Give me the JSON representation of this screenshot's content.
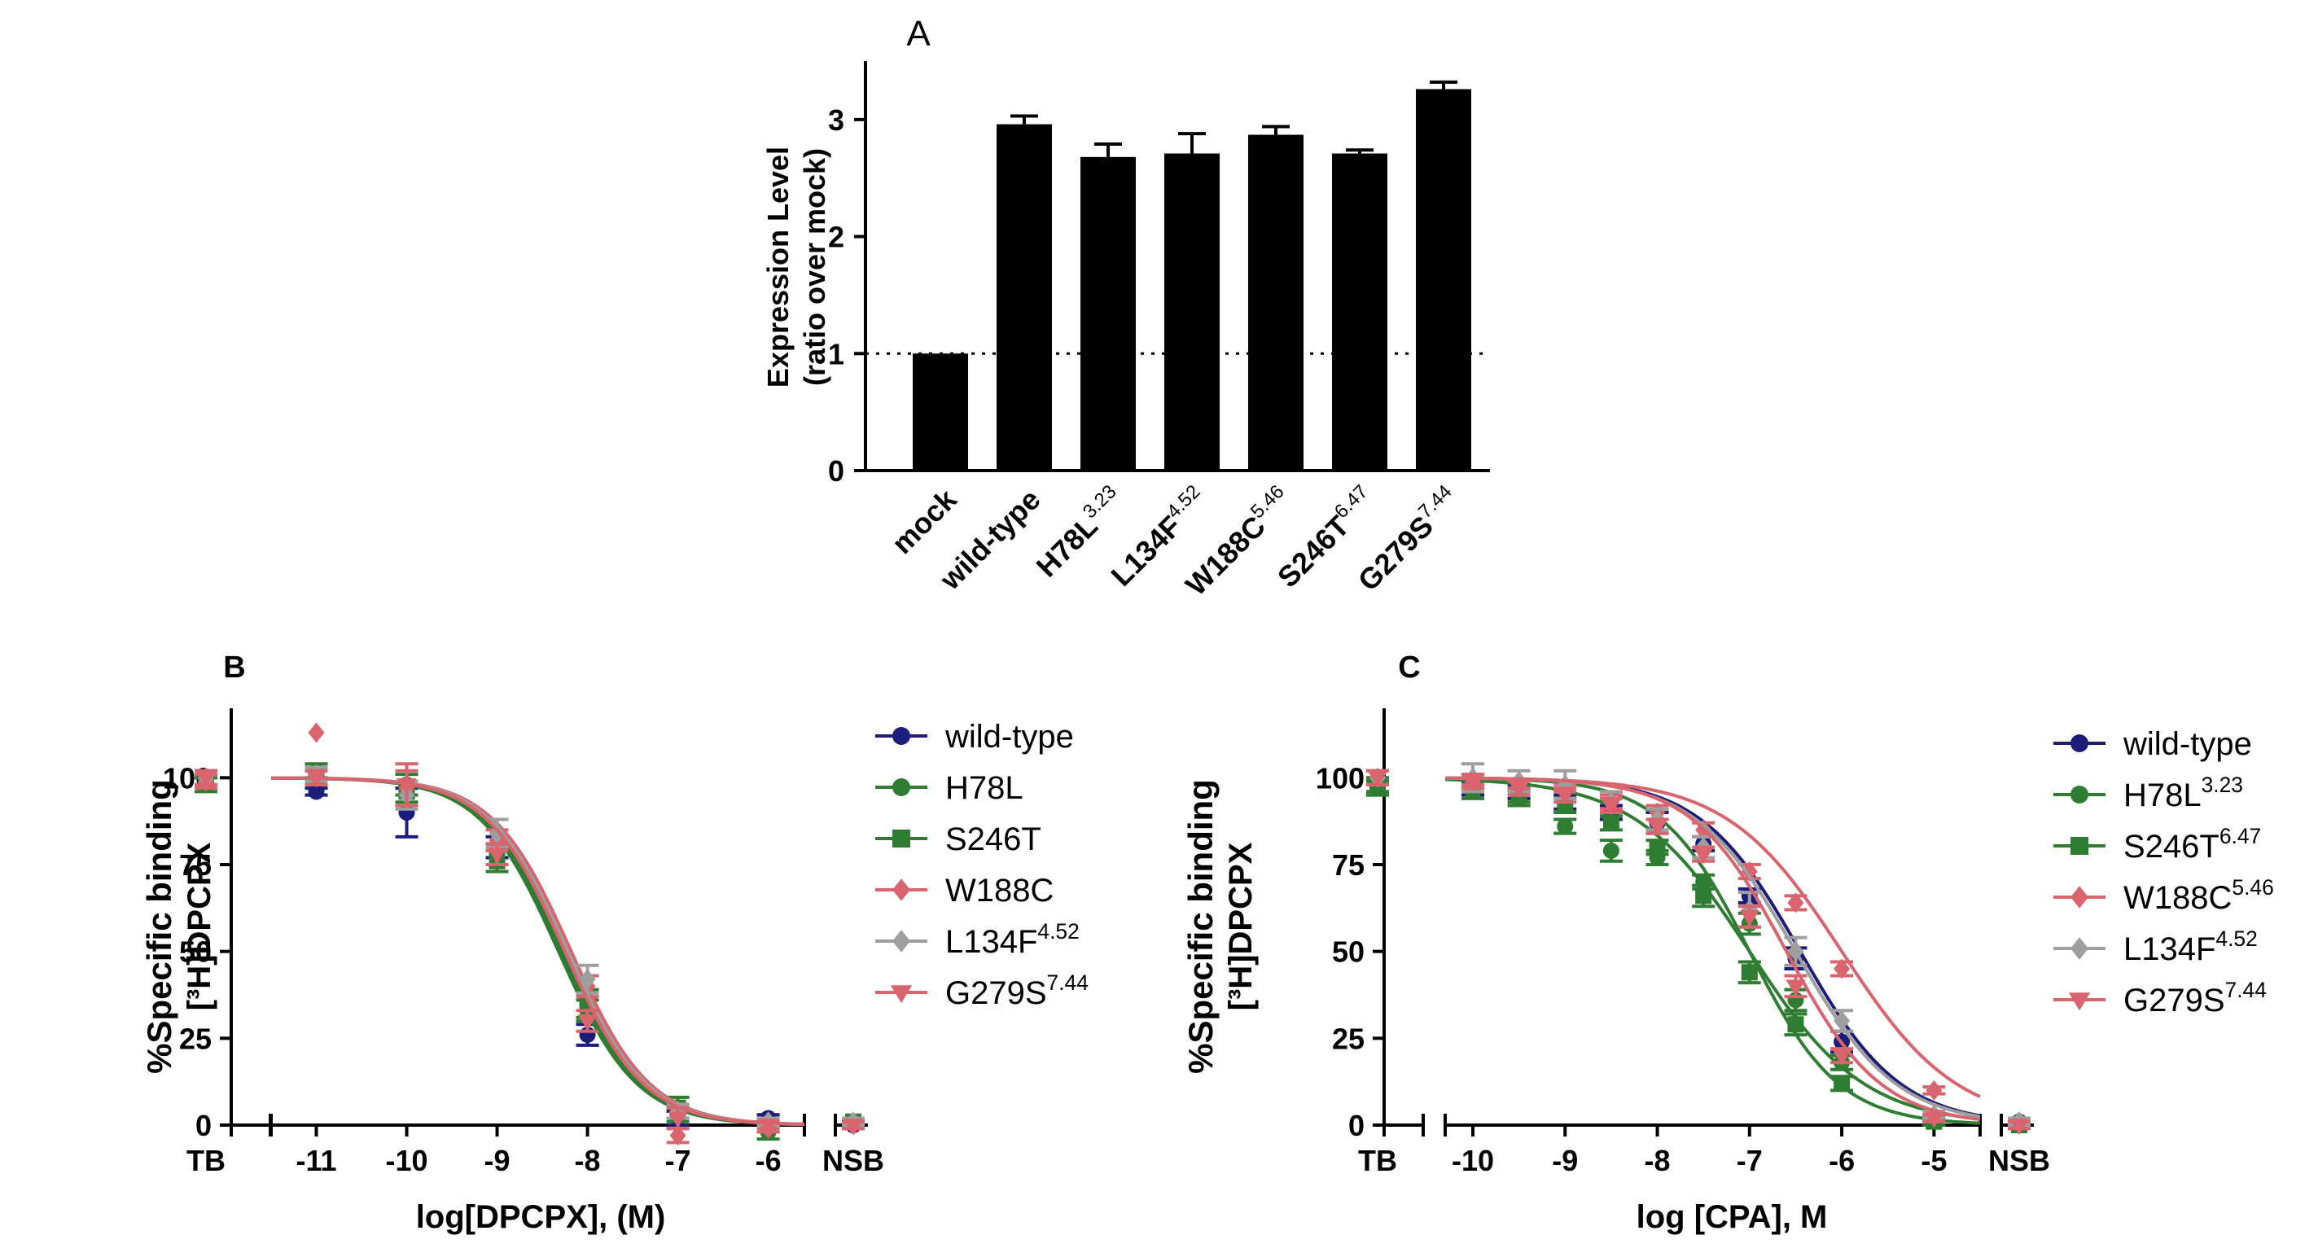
{
  "figure": {
    "panels": [
      "A",
      "B",
      "C"
    ]
  },
  "chart_data": [
    {
      "panel": "A",
      "type": "bar",
      "title": "",
      "ylabel_line1": "Expression Level",
      "ylabel_line2": "(ratio over mock)",
      "xlabel": "",
      "ylim": [
        0,
        3.5
      ],
      "yticks": [
        0,
        1,
        2,
        3
      ],
      "reference_line": 1,
      "categories": [
        {
          "name": "mock",
          "sup": ""
        },
        {
          "name": "wild-type",
          "sup": ""
        },
        {
          "name": "H78L",
          "sup": "3.23"
        },
        {
          "name": "L134F",
          "sup": "4.52"
        },
        {
          "name": "W188C",
          "sup": "5.46"
        },
        {
          "name": "S246T",
          "sup": "6.47"
        },
        {
          "name": "G279S",
          "sup": "7.44"
        }
      ],
      "values": [
        1.0,
        2.96,
        2.68,
        2.71,
        2.87,
        2.71,
        3.26
      ],
      "errors": [
        0,
        0.07,
        0.11,
        0.17,
        0.07,
        0.03,
        0.06
      ],
      "bar_color": "#000000"
    },
    {
      "panel": "B",
      "type": "line",
      "ylabel_line1": "%Specific binding",
      "ylabel_line2": "[³H]DPCPX",
      "xlabel": "log[DPCPX], (M)",
      "xlim": [
        -11.5,
        -5.6
      ],
      "ylim": [
        0,
        120
      ],
      "xticks": [
        -11,
        -10,
        -9,
        -8,
        -7,
        -6
      ],
      "yticks": [
        0,
        25,
        50,
        75,
        100
      ],
      "left_category": "TB",
      "right_category": "NSB",
      "legend_position": "right",
      "series": [
        {
          "name": "wild-type",
          "sup": "",
          "color": "#1c1c7a",
          "marker": "circle",
          "logIC50": -8.3,
          "hill": 1.0,
          "x": [
            -11,
            -10,
            -9,
            -8,
            -7,
            -6
          ],
          "y": [
            96,
            90,
            80,
            26,
            2,
            2
          ],
          "err": [
            1,
            7,
            3,
            3,
            2,
            1
          ],
          "tb": 100,
          "nsb": 0
        },
        {
          "name": "H78L",
          "sup": "",
          "color": "#2e7d32",
          "marker": "circle",
          "logIC50": -8.32,
          "hill": 1.0,
          "x": [
            -11,
            -10,
            -9,
            -8,
            -7,
            -6
          ],
          "y": [
            102,
            98,
            78,
            33,
            3,
            -2
          ],
          "err": [
            2,
            3,
            3,
            3,
            2,
            2
          ],
          "tb": 100,
          "nsb": 1
        },
        {
          "name": "S246T",
          "sup": "",
          "color": "#2e7d32",
          "marker": "square",
          "logIC50": -8.28,
          "hill": 1.0,
          "x": [
            -11,
            -10,
            -9,
            -8,
            -7,
            -6
          ],
          "y": [
            100,
            96,
            76,
            35,
            5,
            0
          ],
          "err": [
            2,
            3,
            3,
            4,
            3,
            2
          ],
          "tb": 98,
          "nsb": 1
        },
        {
          "name": "W188C",
          "sup": "",
          "color": "#d9646e",
          "marker": "diamond",
          "logIC50": -8.18,
          "hill": 1.0,
          "x": [
            -11,
            -10,
            -9,
            -8,
            -7,
            -6
          ],
          "y": [
            113,
            97,
            82,
            40,
            -3,
            -1
          ],
          "err": [
            0,
            5,
            3,
            3,
            2,
            1
          ],
          "tb": 99,
          "nsb": 0
        },
        {
          "name": "L134F",
          "sup": "4.52",
          "color": "#9e9e9e",
          "marker": "diamond",
          "logIC50": -8.22,
          "hill": 1.0,
          "x": [
            -11,
            -10,
            -9,
            -8,
            -7,
            -6
          ],
          "y": [
            101,
            95,
            84,
            42,
            4,
            1
          ],
          "err": [
            2,
            4,
            4,
            4,
            2,
            1
          ],
          "tb": 100,
          "nsb": 1
        },
        {
          "name": "G279S",
          "sup": "7.44",
          "color": "#d9646e",
          "marker": "triangle-down",
          "logIC50": -8.25,
          "hill": 1.0,
          "x": [
            -11,
            -10,
            -9,
            -8,
            -7,
            -6
          ],
          "y": [
            100,
            98,
            78,
            30,
            2,
            0
          ],
          "err": [
            2,
            6,
            3,
            3,
            3,
            1
          ],
          "tb": 100,
          "nsb": 0
        }
      ]
    },
    {
      "panel": "C",
      "type": "line",
      "ylabel_line1": "%Specific binding",
      "ylabel_line2": "[³H]DPCPX",
      "xlabel": "log [CPA], M",
      "xlim": [
        -10.3,
        -4.5
      ],
      "ylim": [
        0,
        120
      ],
      "xticks": [
        -10,
        -9,
        -8,
        -7,
        -6,
        -5
      ],
      "yticks": [
        0,
        25,
        50,
        75,
        100
      ],
      "left_category": "TB",
      "right_category": "NSB",
      "legend_position": "right",
      "series": [
        {
          "name": "wild-type",
          "sup": "",
          "color": "#1c1c7a",
          "marker": "circle",
          "logIC50": -6.45,
          "hill": 0.8,
          "x": [
            -10,
            -9.5,
            -9,
            -8.5,
            -8,
            -7.5,
            -7,
            -6.5,
            -6,
            -5
          ],
          "y": [
            97,
            96,
            93,
            90,
            87,
            81,
            66,
            48,
            24,
            2
          ],
          "err": [
            2,
            2,
            2,
            2,
            3,
            2,
            2,
            3,
            3,
            1
          ],
          "tb": 98,
          "nsb": 1
        },
        {
          "name": "H78L",
          "sup": "3.23",
          "color": "#2e7d32",
          "marker": "circle",
          "logIC50": -7.0,
          "hill": 0.7,
          "x": [
            -10,
            -9.5,
            -9,
            -8.5,
            -8,
            -7.5,
            -7,
            -6.5,
            -6,
            -5
          ],
          "y": [
            96,
            94,
            86,
            79,
            77,
            70,
            58,
            36,
            18,
            1
          ],
          "err": [
            2,
            2,
            2,
            3,
            2,
            2,
            3,
            3,
            2,
            1
          ],
          "tb": 97,
          "nsb": 1
        },
        {
          "name": "S246T",
          "sup": "6.47",
          "color": "#2e7d32",
          "marker": "square",
          "logIC50": -7.0,
          "hill": 0.9,
          "x": [
            -10,
            -9.5,
            -9,
            -8.5,
            -8,
            -7.5,
            -7,
            -6.5,
            -6,
            -5
          ],
          "y": [
            98,
            95,
            92,
            87,
            80,
            66,
            44,
            29,
            12,
            1
          ],
          "err": [
            2,
            2,
            2,
            2,
            2,
            3,
            3,
            3,
            2,
            1
          ],
          "tb": 98,
          "nsb": 0
        },
        {
          "name": "W188C",
          "sup": "5.46",
          "color": "#d9646e",
          "marker": "diamond",
          "logIC50": -6.0,
          "hill": 0.7,
          "x": [
            -10,
            -9.5,
            -9,
            -8.5,
            -8,
            -7.5,
            -7,
            -6.5,
            -6,
            -5
          ],
          "y": [
            99,
            98,
            97,
            93,
            90,
            85,
            73,
            64,
            45,
            10
          ],
          "err": [
            1,
            1,
            1,
            2,
            2,
            2,
            2,
            2,
            2,
            1
          ],
          "tb": 100,
          "nsb": 1
        },
        {
          "name": "L134F",
          "sup": "4.52",
          "color": "#9e9e9e",
          "marker": "diamond",
          "logIC50": -6.5,
          "hill": 0.8,
          "x": [
            -10,
            -9.5,
            -9,
            -8.5,
            -8,
            -7.5,
            -7,
            -6.5,
            -6,
            -5
          ],
          "y": [
            100,
            99,
            98,
            93,
            88,
            80,
            62,
            50,
            30,
            3
          ],
          "err": [
            4,
            3,
            4,
            3,
            3,
            3,
            5,
            4,
            3,
            1
          ],
          "tb": 100,
          "nsb": 1
        },
        {
          "name": "G279S",
          "sup": "7.44",
          "color": "#d9646e",
          "marker": "triangle-down",
          "logIC50": -6.6,
          "hill": 0.85,
          "x": [
            -10,
            -9.5,
            -9,
            -8.5,
            -8,
            -7.5,
            -7,
            -6.5,
            -6,
            -5
          ],
          "y": [
            99,
            97,
            95,
            92,
            86,
            78,
            60,
            40,
            20,
            2
          ],
          "err": [
            2,
            2,
            2,
            2,
            2,
            2,
            3,
            3,
            2,
            1
          ],
          "tb": 100,
          "nsb": 0
        }
      ]
    }
  ]
}
